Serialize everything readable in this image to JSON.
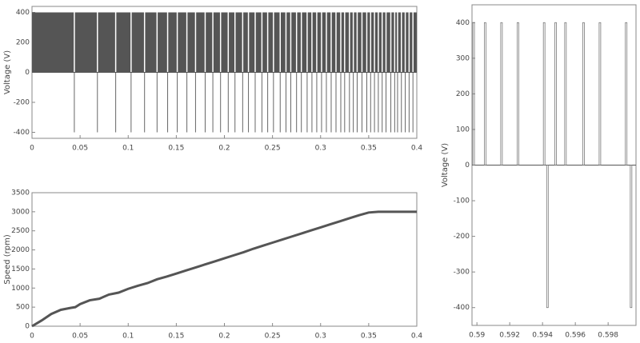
{
  "chart_data": [
    {
      "type": "pwm",
      "ylabel": "Voltage (V)",
      "xlim": [
        0,
        0.4
      ],
      "ylim": [
        -440,
        440
      ],
      "xticks": [
        0,
        0.05,
        0.1,
        0.15,
        0.2,
        0.25,
        0.3,
        0.35,
        0.4
      ],
      "yticks": [
        -400,
        -200,
        0,
        200,
        400
      ],
      "series": [
        {
          "color": "#555555",
          "x": [
            0,
            0.4
          ],
          "values": [
            400,
            400
          ]
        },
        {
          "color": "#666666",
          "x": [
            0.044,
            0.068,
            0.087,
            0.103,
            0.117,
            0.13,
            0.141,
            0.151,
            0.161,
            0.17,
            0.18,
            0.188,
            0.196,
            0.204,
            0.211,
            0.219,
            0.225,
            0.232,
            0.239,
            0.245,
            0.251,
            0.258,
            0.264,
            0.269,
            0.275,
            0.28,
            0.286,
            0.291,
            0.296,
            0.301,
            0.306,
            0.311,
            0.316,
            0.321,
            0.325,
            0.33,
            0.334,
            0.338,
            0.343,
            0.348,
            0.352,
            0.356,
            0.36,
            0.364,
            0.368,
            0.373,
            0.377,
            0.38,
            0.384,
            0.388,
            0.392,
            0.396
          ],
          "values": [
            -400,
            -400,
            -400,
            -400,
            -400,
            -400,
            -400,
            -400,
            -400,
            -400,
            -400,
            -400,
            -400,
            -400,
            -400,
            -400,
            -400,
            -400,
            -400,
            -400,
            -400,
            -400,
            -400,
            -400,
            -400,
            -400,
            -400,
            -400,
            -400,
            -400,
            -400,
            -400,
            -400,
            -400,
            -400,
            -400,
            -400,
            -400,
            -400,
            -400,
            -400,
            -400,
            -400,
            -400,
            -400,
            -400,
            -400,
            -400,
            -400,
            -400,
            -400,
            -400
          ]
        }
      ]
    },
    {
      "type": "line",
      "ylabel": "Speed (rpm)",
      "xlim": [
        0,
        0.4
      ],
      "ylim": [
        0,
        3500
      ],
      "xticks": [
        0,
        0.05,
        0.1,
        0.15,
        0.2,
        0.25,
        0.3,
        0.35,
        0.4
      ],
      "yticks": [
        0,
        500,
        1000,
        1500,
        2000,
        2500,
        3000,
        3500
      ],
      "series": [
        {
          "color": "#555555",
          "x": [
            0,
            0.01,
            0.02,
            0.03,
            0.04,
            0.045,
            0.05,
            0.06,
            0.07,
            0.08,
            0.09,
            0.1,
            0.11,
            0.12,
            0.13,
            0.14,
            0.15,
            0.16,
            0.17,
            0.18,
            0.19,
            0.2,
            0.21,
            0.22,
            0.23,
            0.24,
            0.25,
            0.26,
            0.27,
            0.28,
            0.29,
            0.3,
            0.31,
            0.32,
            0.33,
            0.34,
            0.35,
            0.36,
            0.38,
            0.4
          ],
          "values": [
            0,
            150,
            320,
            430,
            480,
            500,
            580,
            680,
            720,
            830,
            880,
            980,
            1060,
            1130,
            1230,
            1300,
            1380,
            1460,
            1540,
            1620,
            1700,
            1780,
            1860,
            1940,
            2030,
            2110,
            2190,
            2270,
            2350,
            2430,
            2510,
            2590,
            2670,
            2750,
            2830,
            2910,
            2980,
            3000,
            3000,
            3000
          ]
        }
      ]
    },
    {
      "type": "pulse",
      "ylabel": "Voltage (V)",
      "xlim": [
        0.5897,
        0.5997
      ],
      "ylim": [
        -450,
        450
      ],
      "xticks": [
        0.59,
        0.592,
        0.594,
        0.596,
        0.598
      ],
      "yticks": [
        -400,
        -300,
        -200,
        -100,
        0,
        100,
        200,
        300,
        400
      ],
      "series": [
        {
          "color": "#777777",
          "x": [
            0.5898,
            0.5905,
            0.5915,
            0.5925,
            0.5941,
            0.5943,
            0.5948,
            0.5954,
            0.5965,
            0.5975,
            0.5991,
            0.5994
          ],
          "values": [
            400,
            400,
            400,
            400,
            400,
            -400,
            400,
            400,
            400,
            400,
            400,
            -400
          ]
        }
      ]
    }
  ]
}
